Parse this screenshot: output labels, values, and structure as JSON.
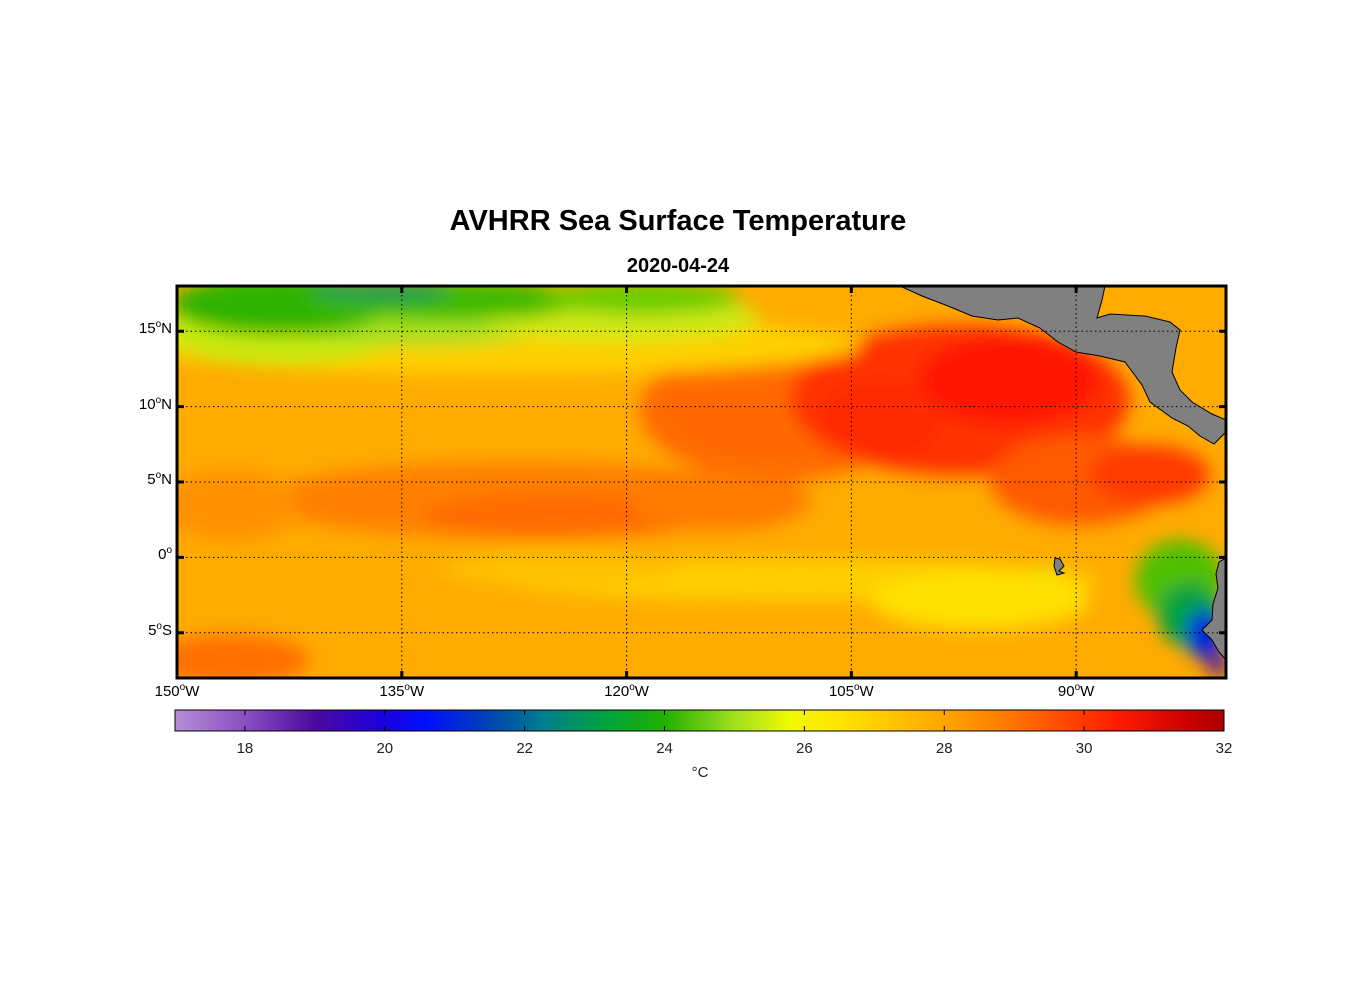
{
  "title": "AVHRR Sea Surface Temperature",
  "subtitle": "2020-04-24",
  "map": {
    "lon_range": [
      -150,
      -80
    ],
    "lat_range": [
      -8,
      18
    ],
    "lat_ticks": [
      {
        "value": 15,
        "num": "15",
        "hemi": "N"
      },
      {
        "value": 10,
        "num": "10",
        "hemi": "N"
      },
      {
        "value": 5,
        "num": "5",
        "hemi": "N"
      },
      {
        "value": 0,
        "num": "0",
        "hemi": ""
      },
      {
        "value": -5,
        "num": "5",
        "hemi": "S"
      }
    ],
    "lon_ticks": [
      {
        "value": -150,
        "num": "150",
        "hemi": "W"
      },
      {
        "value": -135,
        "num": "135",
        "hemi": "W"
      },
      {
        "value": -120,
        "num": "120",
        "hemi": "W"
      },
      {
        "value": -105,
        "num": "105",
        "hemi": "W"
      },
      {
        "value": -90,
        "num": "90",
        "hemi": "W"
      }
    ],
    "grid": "dotted",
    "land_color": "#808080"
  },
  "colorbar": {
    "range": [
      17,
      32
    ],
    "ticks": [
      "18",
      "20",
      "22",
      "24",
      "26",
      "28",
      "30",
      "32"
    ],
    "unit": "°C",
    "stops": [
      {
        "v": 17.0,
        "c": "#b48ed8"
      },
      {
        "v": 18.0,
        "c": "#8a4fc0"
      },
      {
        "v": 19.0,
        "c": "#4b0a9e"
      },
      {
        "v": 20.0,
        "c": "#1a00e0"
      },
      {
        "v": 20.6,
        "c": "#0010ff"
      },
      {
        "v": 21.5,
        "c": "#0044b0"
      },
      {
        "v": 22.3,
        "c": "#00808a"
      },
      {
        "v": 23.2,
        "c": "#00a43a"
      },
      {
        "v": 24.0,
        "c": "#22b000"
      },
      {
        "v": 25.0,
        "c": "#a0e020"
      },
      {
        "v": 25.8,
        "c": "#f0fa00"
      },
      {
        "v": 26.5,
        "c": "#ffe400"
      },
      {
        "v": 28.0,
        "c": "#ffa600"
      },
      {
        "v": 29.0,
        "c": "#ff7400"
      },
      {
        "v": 30.5,
        "c": "#ff1a00"
      },
      {
        "v": 31.5,
        "c": "#cc0000"
      },
      {
        "v": 32.0,
        "c": "#a80000"
      }
    ]
  }
}
